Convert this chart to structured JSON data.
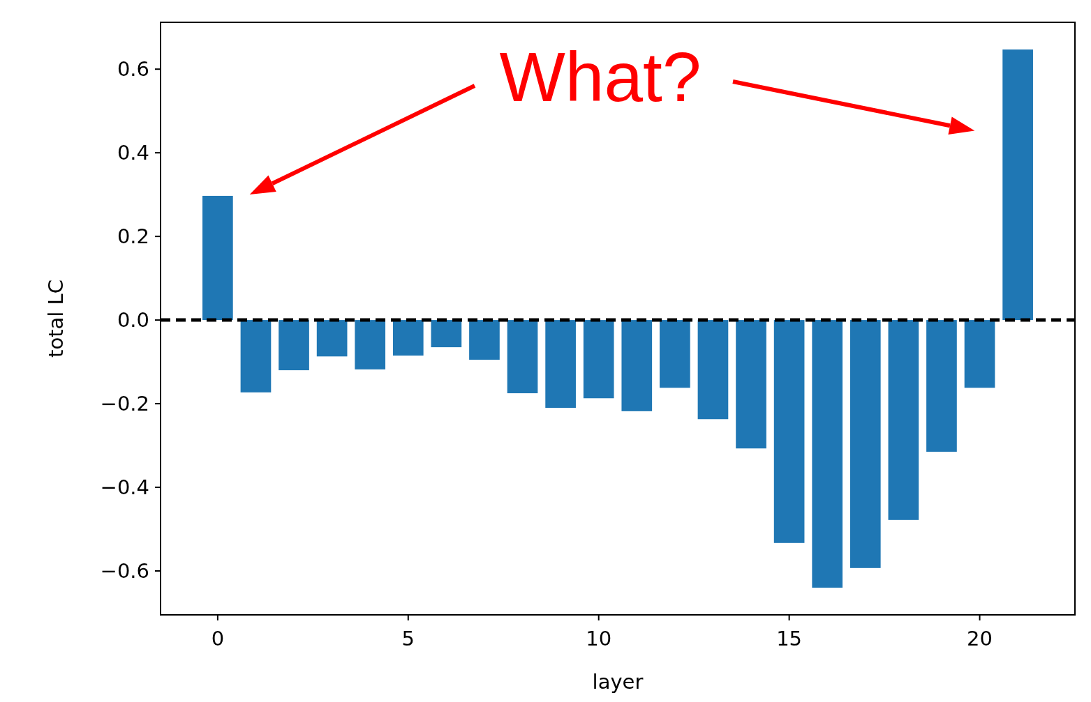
{
  "chart_data": {
    "type": "bar",
    "x": [
      0,
      1,
      2,
      3,
      4,
      5,
      6,
      7,
      8,
      9,
      10,
      11,
      12,
      13,
      14,
      15,
      16,
      17,
      18,
      19,
      20,
      21
    ],
    "values": [
      0.297,
      -0.173,
      -0.12,
      -0.087,
      -0.118,
      -0.085,
      -0.065,
      -0.095,
      -0.175,
      -0.21,
      -0.187,
      -0.218,
      -0.162,
      -0.237,
      -0.307,
      -0.533,
      -0.64,
      -0.593,
      -0.478,
      -0.315,
      -0.162,
      0.647
    ],
    "color": "#1f77b4",
    "xlabel": "layer",
    "ylabel": "total LC",
    "xlim": [
      -1.5,
      22.5
    ],
    "xticks": [
      0,
      5,
      10,
      15,
      20
    ],
    "ylim": [
      -0.705,
      0.712
    ],
    "yticks": [
      {
        "value": -0.6,
        "label": "−0.6"
      },
      {
        "value": -0.4,
        "label": "−0.4"
      },
      {
        "value": -0.2,
        "label": "−0.2"
      },
      {
        "value": 0,
        "label": "0.0"
      },
      {
        "value": 0.2,
        "label": "0.2"
      },
      {
        "value": 0.4,
        "label": "0.4"
      },
      {
        "value": 0.6,
        "label": "0.6"
      }
    ],
    "ref_lines": [
      {
        "axis": "y",
        "value": 0,
        "color": "#000000",
        "line_style": "dashed"
      }
    ],
    "annotations": [
      "What?"
    ],
    "grid": false
  }
}
